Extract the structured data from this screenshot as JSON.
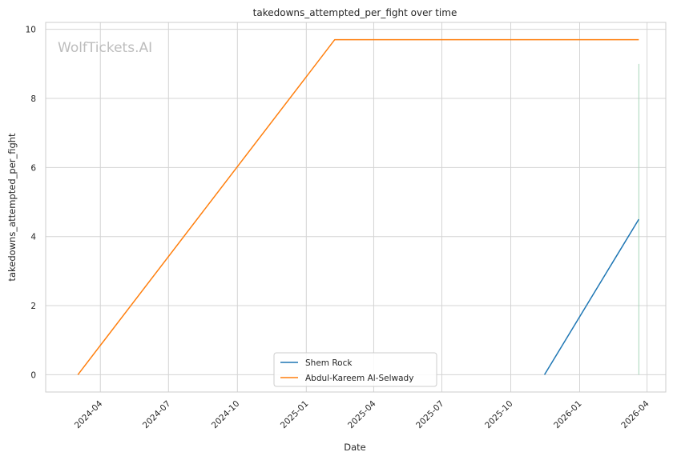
{
  "chart_data": {
    "type": "line",
    "title": "takedowns_attempted_per_fight over time",
    "xlabel": "Date",
    "ylabel": "takedowns_attempted_per_fight",
    "watermark": "WolfTickets.AI",
    "xlim": [
      "2024-01-19",
      "2026-04-26"
    ],
    "ylim": [
      -0.5,
      10.2
    ],
    "x_ticks": [
      "2024-04",
      "2024-07",
      "2024-10",
      "2025-01",
      "2025-04",
      "2025-07",
      "2025-10",
      "2026-01",
      "2026-04"
    ],
    "y_ticks": [
      0,
      2,
      4,
      6,
      8,
      10
    ],
    "grid": true,
    "legend_position": "lower-center",
    "series": [
      {
        "name": "Shem Rock",
        "color": "#1f77b4",
        "x": [
          "2025-11-15",
          "2026-03-21"
        ],
        "y": [
          0,
          4.5
        ]
      },
      {
        "name": "Abdul-Kareem Al-Selwady",
        "color": "#ff7f0e",
        "x": [
          "2024-03-02",
          "2025-02-08",
          "2026-03-21"
        ],
        "y": [
          0,
          9.7,
          9.7
        ]
      }
    ],
    "annotations": [
      {
        "type": "vline",
        "x": "2026-03-21",
        "y_range": [
          0,
          9
        ],
        "color": "#a8d5ba"
      }
    ]
  }
}
